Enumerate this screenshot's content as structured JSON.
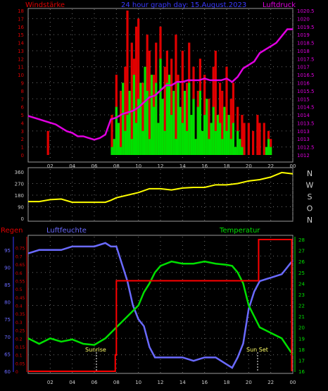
{
  "header": {
    "left": "Windstärke",
    "center": "24 hour graph day: 15.August.2023",
    "right": "Luftdruck"
  },
  "colors": {
    "gust": "#e00000",
    "wind": "#00e000",
    "pressure": "#e000e0",
    "direction": "#ffff00",
    "humidity": "#6a6aff",
    "temperature": "#00e000",
    "rain": "#ff0000",
    "grid": "#7a7a7a",
    "background": "#000000"
  },
  "x_ticks": [
    "02",
    "04",
    "06",
    "08",
    "10",
    "12",
    "14",
    "16",
    "18",
    "20",
    "22",
    "00"
  ],
  "top_left_ticks": [
    "0",
    "1",
    "2",
    "3",
    "4",
    "5",
    "6",
    "7",
    "8",
    "9",
    "10",
    "11",
    "12",
    "13",
    "14",
    "15",
    "16",
    "17",
    "18"
  ],
  "top_right_ticks": [
    "1012",
    "1012.5",
    "1013",
    "1013",
    "1013.5",
    "1014",
    "1014.5",
    "1015",
    "1015.5",
    "1016",
    "1016.5",
    "1017",
    "1017.5",
    "1018",
    "1018.5",
    "1019",
    "1019.5",
    "1020",
    "1020.5"
  ],
  "dir_left_ticks": [
    "0",
    "90",
    "180",
    "270",
    "360"
  ],
  "dir_right_ticks": [
    "N",
    "W",
    "S",
    "O",
    "N"
  ],
  "bottom_titles": {
    "rain": "Regen",
    "humidity": "Luftfeuchte",
    "temperature": "Temperatur"
  },
  "bottom_blue_ticks": [
    "60",
    "65",
    "70",
    "75",
    "80",
    "85",
    "90",
    "95"
  ],
  "bottom_red_ticks": [
    "0",
    "0.05",
    "0.1",
    "0.15",
    "0.2",
    "0.25",
    "0.3",
    "0.35",
    "0.4",
    "0.45",
    "0.5",
    "0.55",
    "0.6",
    "0.65",
    "0.7",
    "0.75"
  ],
  "bottom_right_ticks": [
    "16",
    "17",
    "18",
    "19",
    "20",
    "21",
    "22",
    "23",
    "24",
    "25",
    "26",
    "27",
    "28"
  ],
  "annotations": {
    "sunrise": "Sunrise",
    "sunset": "Sun Set"
  },
  "chart_data": [
    {
      "type": "bar",
      "title": "Windstärke",
      "x_unit": "hour",
      "xlim": [
        0,
        24
      ],
      "ylim_left": [
        0,
        18
      ],
      "ylim_right": [
        1012,
        1020.5
      ],
      "series": [
        {
          "name": "Windstärke",
          "kind": "bars",
          "x": [
            7.6,
            7.8,
            8.0,
            8.2,
            8.4,
            8.6,
            8.8,
            9.0,
            9.2,
            9.4,
            9.6,
            9.8,
            10.0,
            10.2,
            10.4,
            10.6,
            10.8,
            11.0,
            11.2,
            11.4,
            11.6,
            11.8,
            12.0,
            12.2,
            12.4,
            12.6,
            12.8,
            13.0,
            13.2,
            13.4,
            13.6,
            13.8,
            14.0,
            14.2,
            14.4,
            14.6,
            14.8,
            15.0,
            15.2,
            15.4,
            15.6,
            15.8,
            16.0,
            16.2,
            16.4,
            16.6,
            16.8,
            17.0,
            17.2,
            17.4,
            17.6,
            17.8,
            18.0,
            18.2,
            18.4,
            18.6,
            18.8,
            19.0,
            19.2,
            19.4,
            21.6,
            21.8,
            22.0
          ],
          "values": [
            1,
            2,
            6,
            4,
            1,
            9,
            3,
            5,
            8,
            2,
            10,
            4,
            7,
            9,
            3,
            11,
            8,
            2,
            10,
            6,
            9,
            4,
            12,
            7,
            3,
            9,
            10,
            5,
            8,
            2,
            9,
            6,
            4,
            8,
            3,
            9,
            5,
            7,
            2,
            6,
            8,
            3,
            5,
            7,
            2,
            4,
            6,
            3,
            5,
            4,
            2,
            6,
            3,
            5,
            2,
            4,
            1,
            3,
            2,
            1,
            1,
            2,
            1
          ]
        },
        {
          "name": "Böen",
          "kind": "bars",
          "x": [
            1.8,
            7.6,
            8.0,
            8.4,
            8.8,
            9.0,
            9.4,
            9.6,
            9.8,
            10.0,
            10.4,
            10.8,
            11.0,
            11.4,
            11.6,
            12.0,
            12.4,
            12.6,
            12.8,
            13.0,
            13.4,
            13.6,
            14.0,
            14.4,
            14.6,
            15.0,
            15.4,
            15.6,
            16.0,
            16.4,
            16.8,
            17.0,
            17.4,
            17.6,
            18.0,
            18.4,
            18.6,
            19.0,
            19.4,
            19.6,
            20.0,
            20.4,
            20.8,
            21.0,
            21.4,
            21.8,
            22.0
          ],
          "values": [
            3,
            5,
            10,
            8,
            11,
            18,
            14,
            12,
            16,
            17,
            9,
            15,
            13,
            10,
            14,
            16,
            11,
            13,
            9,
            12,
            15,
            10,
            13,
            9,
            14,
            11,
            8,
            12,
            10,
            7,
            11,
            13,
            9,
            8,
            11,
            7,
            9,
            6,
            5,
            4,
            4,
            3,
            5,
            4,
            4,
            3,
            2
          ]
        },
        {
          "name": "Luftdruck",
          "kind": "line",
          "axis": "right",
          "x": [
            0,
            0.5,
            1,
            1.5,
            2,
            2.5,
            3,
            3.5,
            4,
            4.5,
            5,
            5.5,
            6,
            6.5,
            7,
            7.5,
            8,
            8.5,
            9,
            9.5,
            10,
            10.5,
            11,
            11.5,
            12,
            12.5,
            13,
            13.5,
            14,
            14.5,
            15,
            15.5,
            16,
            16.5,
            17,
            17.5,
            18,
            18.5,
            19,
            19.5,
            20,
            20.5,
            21,
            21.5,
            22,
            22.5,
            23,
            23.5,
            24
          ],
          "values": [
            1014.3,
            1014.2,
            1014.1,
            1014.0,
            1013.9,
            1013.8,
            1013.6,
            1013.4,
            1013.3,
            1013.1,
            1013.1,
            1013.0,
            1012.9,
            1013.0,
            1013.2,
            1014.1,
            1014.2,
            1014.4,
            1014.5,
            1014.6,
            1014.8,
            1015.1,
            1015.4,
            1015.5,
            1015.8,
            1016.1,
            1016.1,
            1016.3,
            1016.3,
            1016.4,
            1016.4,
            1016.4,
            1016.5,
            1016.4,
            1016.4,
            1016.4,
            1016.5,
            1016.3,
            1016.6,
            1017.1,
            1017.3,
            1017.5,
            1018.0,
            1018.2,
            1018.4,
            1018.6,
            1019.0,
            1019.4,
            1019.4
          ]
        }
      ]
    },
    {
      "type": "line",
      "title": "",
      "x_unit": "hour",
      "xlim": [
        0,
        24
      ],
      "ylim": [
        0,
        360
      ],
      "series": [
        {
          "name": "",
          "x": [
            0,
            1,
            2,
            3,
            4,
            5,
            6,
            7,
            7.5,
            8,
            9,
            10,
            11,
            12,
            13,
            14,
            15,
            16,
            17,
            18,
            19,
            20,
            21,
            22,
            23,
            24
          ],
          "values": [
            130,
            130,
            145,
            150,
            125,
            125,
            125,
            125,
            140,
            160,
            180,
            200,
            230,
            230,
            220,
            235,
            240,
            240,
            260,
            260,
            270,
            290,
            300,
            320,
            355,
            345
          ]
        }
      ]
    },
    {
      "type": "line",
      "title": "",
      "x_unit": "hour",
      "xlim": [
        0,
        24
      ],
      "ylim_humidity": [
        60,
        98
      ],
      "ylim_rain": [
        0,
        0.8
      ],
      "ylim_temperature": [
        16,
        28
      ],
      "series": [
        {
          "name": "Luftfeuchte",
          "axis": "humidity",
          "x": [
            0,
            1,
            2,
            3,
            4,
            5,
            6,
            7,
            7.5,
            8,
            8.5,
            9,
            9.5,
            10,
            10.5,
            11,
            11.5,
            12,
            12.5,
            13,
            14,
            15,
            16,
            17,
            18,
            18.5,
            19,
            19.5,
            20,
            20.5,
            21,
            22,
            23,
            24
          ],
          "values": [
            94,
            95,
            95,
            95,
            96,
            96,
            96,
            97,
            96,
            96,
            91,
            86,
            79,
            75,
            73,
            67,
            64,
            64,
            64,
            64,
            64,
            63,
            64,
            64,
            62,
            61,
            64,
            68,
            78,
            83,
            86,
            87,
            88,
            92
          ]
        },
        {
          "name": "Regen",
          "axis": "rain",
          "x": [
            0,
            7.9,
            7.9,
            8.0,
            8.0,
            20.9,
            20.9,
            23.9,
            23.9
          ],
          "values": [
            0,
            0,
            0.1,
            0.1,
            0.55,
            0.55,
            0.8,
            0.8,
            0
          ]
        },
        {
          "name": "Temperatur",
          "axis": "temperature",
          "x": [
            0,
            1,
            2,
            3,
            4,
            5,
            6,
            7,
            8,
            9,
            10,
            10.5,
            11,
            11.5,
            12,
            13,
            14,
            15,
            16,
            17,
            18,
            18.5,
            19,
            19.5,
            20,
            21,
            22,
            23,
            24
          ],
          "values": [
            19,
            18.5,
            19,
            18.7,
            18.9,
            18.5,
            18.4,
            19,
            20,
            21,
            22,
            23.2,
            24,
            25,
            25.6,
            26,
            25.8,
            25.8,
            26,
            25.8,
            25.7,
            25.6,
            25,
            24,
            22,
            20,
            19.5,
            19,
            17.5
          ]
        }
      ]
    }
  ]
}
